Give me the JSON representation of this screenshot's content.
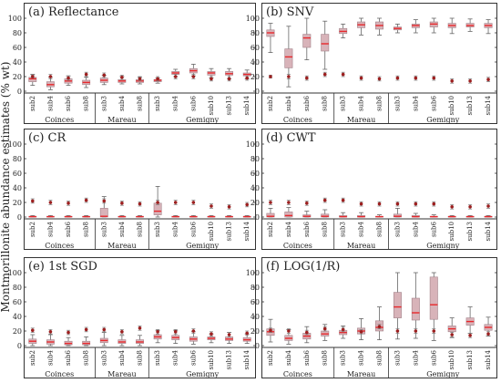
{
  "figure": {
    "ylabel": "Montmorillonite abundance estimates (% wt)"
  },
  "chart_data": [
    {
      "type": "box",
      "title": "(a) Reflectance",
      "ylim": [
        0,
        100
      ],
      "yticks": [
        0,
        20,
        40,
        60,
        80,
        100
      ],
      "categories": [
        "sub2",
        "sub4",
        "sub6",
        "sub8",
        "sub3",
        "sub4",
        "sub8",
        "sub3",
        "sub4",
        "sub6",
        "sub10",
        "sub13",
        "sub14"
      ],
      "groups": [
        {
          "name": "Coinces",
          "count": 4
        },
        {
          "name": "Mareau",
          "count": 3
        },
        {
          "name": "Gemigny",
          "count": 6
        }
      ],
      "boxes": [
        {
          "q1": 13,
          "med": 17,
          "q3": 19,
          "wlo": 8,
          "whi": 23
        },
        {
          "q1": 6,
          "med": 9,
          "q3": 13,
          "wlo": 2,
          "whi": 19
        },
        {
          "q1": 11,
          "med": 14,
          "q3": 17,
          "wlo": 8,
          "whi": 21
        },
        {
          "q1": 9,
          "med": 12,
          "q3": 15,
          "wlo": 5,
          "whi": 19
        },
        {
          "q1": 12,
          "med": 15,
          "q3": 18,
          "wlo": 9,
          "whi": 22
        },
        {
          "q1": 12,
          "med": 14,
          "q3": 16,
          "wlo": 10,
          "whi": 20
        },
        {
          "q1": 12,
          "med": 14,
          "q3": 16,
          "wlo": 10,
          "whi": 19
        },
        {
          "q1": 13,
          "med": 15,
          "q3": 16,
          "wlo": 11,
          "whi": 18
        },
        {
          "q1": 23,
          "med": 25,
          "q3": 27,
          "wlo": 20,
          "whi": 30
        },
        {
          "q1": 25,
          "med": 28,
          "q3": 31,
          "wlo": 21,
          "whi": 37
        },
        {
          "q1": 22,
          "med": 25,
          "q3": 27,
          "wlo": 18,
          "whi": 31
        },
        {
          "q1": 22,
          "med": 24,
          "q3": 27,
          "wlo": 17,
          "whi": 31
        },
        {
          "q1": 21,
          "med": 23,
          "q3": 25,
          "wlo": 17,
          "whi": 29
        }
      ],
      "reference": [
        {
          "mean": 20,
          "err": 2
        },
        {
          "mean": 20,
          "err": 3
        },
        {
          "mean": 18,
          "err": 3
        },
        {
          "mean": 23,
          "err": 3
        },
        {
          "mean": 22,
          "err": 3
        },
        {
          "mean": 19,
          "err": 3
        },
        {
          "mean": 17,
          "err": 3
        },
        {
          "mean": 17,
          "err": 3
        },
        {
          "mean": 20,
          "err": 3
        },
        {
          "mean": 20,
          "err": 3
        },
        {
          "mean": 17,
          "err": 3
        },
        {
          "mean": 17,
          "err": 3
        },
        {
          "mean": 18,
          "err": 3
        }
      ]
    },
    {
      "type": "box",
      "title": "(b) SNV",
      "ylim": [
        0,
        100
      ],
      "yticks": [
        0,
        20,
        40,
        60,
        80,
        100
      ],
      "categories": [
        "sub2",
        "sub4",
        "sub6",
        "sub8",
        "sub3",
        "sub4",
        "sub8",
        "sub3",
        "sub4",
        "sub6",
        "sub10",
        "sub13",
        "sub14"
      ],
      "groups": [
        {
          "name": "Coinces",
          "count": 4
        },
        {
          "name": "Mareau",
          "count": 3
        },
        {
          "name": "Gemigny",
          "count": 6
        }
      ],
      "boxes": [
        {
          "q1": 75,
          "med": 80,
          "q3": 84,
          "wlo": 53,
          "whi": 93
        },
        {
          "q1": 32,
          "med": 47,
          "q3": 58,
          "wlo": 6,
          "whi": 89
        },
        {
          "q1": 60,
          "med": 73,
          "q3": 78,
          "wlo": 43,
          "whi": 100
        },
        {
          "q1": 55,
          "med": 65,
          "q3": 78,
          "wlo": 30,
          "whi": 96
        },
        {
          "q1": 79,
          "med": 82,
          "q3": 86,
          "wlo": 73,
          "whi": 92
        },
        {
          "q1": 87,
          "med": 91,
          "q3": 95,
          "wlo": 77,
          "whi": 100
        },
        {
          "q1": 85,
          "med": 90,
          "q3": 95,
          "wlo": 77,
          "whi": 100
        },
        {
          "q1": 84,
          "med": 86,
          "q3": 88,
          "wlo": 80,
          "whi": 92
        },
        {
          "q1": 87,
          "med": 90,
          "q3": 92,
          "wlo": 80,
          "whi": 98
        },
        {
          "q1": 88,
          "med": 92,
          "q3": 95,
          "wlo": 80,
          "whi": 100
        },
        {
          "q1": 87,
          "med": 90,
          "q3": 93,
          "wlo": 79,
          "whi": 100
        },
        {
          "q1": 88,
          "med": 90,
          "q3": 93,
          "wlo": 82,
          "whi": 99
        },
        {
          "q1": 87,
          "med": 90,
          "q3": 93,
          "wlo": 79,
          "whi": 98
        }
      ],
      "reference": [
        {
          "mean": 20,
          "err": 2
        },
        {
          "mean": 20,
          "err": 3
        },
        {
          "mean": 18,
          "err": 3
        },
        {
          "mean": 23,
          "err": 3
        },
        {
          "mean": 23,
          "err": 3
        },
        {
          "mean": 18,
          "err": 3
        },
        {
          "mean": 17,
          "err": 3
        },
        {
          "mean": 18,
          "err": 3
        },
        {
          "mean": 18,
          "err": 3
        },
        {
          "mean": 18,
          "err": 3
        },
        {
          "mean": 14,
          "err": 3
        },
        {
          "mean": 14,
          "err": 3
        },
        {
          "mean": 16,
          "err": 3
        }
      ]
    },
    {
      "type": "box",
      "title": "(c) CR",
      "ylim": [
        0,
        100
      ],
      "yticks": [
        0,
        20,
        40,
        60,
        80,
        100
      ],
      "categories": [
        "sub2",
        "sub4",
        "sub6",
        "sub8",
        "sub3",
        "sub4",
        "sub8",
        "sub3",
        "sub4",
        "sub6",
        "sub10",
        "sub13",
        "sub14"
      ],
      "groups": [
        {
          "name": "Coinces",
          "count": 4
        },
        {
          "name": "Mareau",
          "count": 3
        },
        {
          "name": "Gemigny",
          "count": 6
        }
      ],
      "boxes": [
        {
          "q1": 0,
          "med": 0.5,
          "q3": 1,
          "wlo": 0,
          "whi": 2
        },
        {
          "q1": 0,
          "med": 0.5,
          "q3": 1,
          "wlo": 0,
          "whi": 2
        },
        {
          "q1": 0,
          "med": 0.5,
          "q3": 1,
          "wlo": 0,
          "whi": 2
        },
        {
          "q1": 0,
          "med": 0.5,
          "q3": 1,
          "wlo": 0,
          "whi": 2
        },
        {
          "q1": 0,
          "med": 1,
          "q3": 12,
          "wlo": 0,
          "whi": 28
        },
        {
          "q1": 0,
          "med": 0.5,
          "q3": 1,
          "wlo": 0,
          "whi": 2
        },
        {
          "q1": 0,
          "med": 0.5,
          "q3": 1,
          "wlo": 0,
          "whi": 2
        },
        {
          "q1": 3,
          "med": 8,
          "q3": 19,
          "wlo": 0,
          "whi": 42
        },
        {
          "q1": 0,
          "med": 0.5,
          "q3": 1,
          "wlo": 0,
          "whi": 2
        },
        {
          "q1": 0,
          "med": 0.5,
          "q3": 1,
          "wlo": 0,
          "whi": 2
        },
        {
          "q1": 0,
          "med": 0.5,
          "q3": 1,
          "wlo": 0,
          "whi": 2
        },
        {
          "q1": 0,
          "med": 0.5,
          "q3": 1,
          "wlo": 0,
          "whi": 2
        },
        {
          "q1": 0,
          "med": 0.5,
          "q3": 1,
          "wlo": 0,
          "whi": 2
        }
      ],
      "reference": [
        {
          "mean": 22,
          "err": 3
        },
        {
          "mean": 20,
          "err": 3
        },
        {
          "mean": 19,
          "err": 3
        },
        {
          "mean": 23,
          "err": 3
        },
        {
          "mean": 22,
          "err": 3
        },
        {
          "mean": 19,
          "err": 3
        },
        {
          "mean": 18,
          "err": 3
        },
        {
          "mean": 20,
          "err": 3
        },
        {
          "mean": 20,
          "err": 3
        },
        {
          "mean": 20,
          "err": 3
        },
        {
          "mean": 15,
          "err": 3
        },
        {
          "mean": 14,
          "err": 3
        },
        {
          "mean": 17,
          "err": 3
        }
      ]
    },
    {
      "type": "box",
      "title": "(d) CWT",
      "ylim": [
        0,
        100
      ],
      "yticks": [
        0,
        20,
        40,
        60,
        80,
        100
      ],
      "categories": [
        "sub2",
        "sub4",
        "sub6",
        "sub8",
        "sub3",
        "sub4",
        "sub8",
        "sub3",
        "sub4",
        "sub6",
        "sub10",
        "sub13",
        "sub14"
      ],
      "groups": [
        {
          "name": "Coinces",
          "count": 4
        },
        {
          "name": "Mareau",
          "count": 3
        },
        {
          "name": "Gemigny",
          "count": 6
        }
      ],
      "boxes": [
        {
          "q1": 0,
          "med": 1,
          "q3": 5,
          "wlo": 0,
          "whi": 12
        },
        {
          "q1": 0,
          "med": 2,
          "q3": 7,
          "wlo": 0,
          "whi": 13
        },
        {
          "q1": 0,
          "med": 1,
          "q3": 3,
          "wlo": 0,
          "whi": 8
        },
        {
          "q1": 0,
          "med": 1,
          "q3": 4,
          "wlo": 0,
          "whi": 10
        },
        {
          "q1": 0,
          "med": 0.5,
          "q3": 2,
          "wlo": 0,
          "whi": 6
        },
        {
          "q1": 0,
          "med": 0.5,
          "q3": 2,
          "wlo": 0,
          "whi": 6
        },
        {
          "q1": 0,
          "med": 0.5,
          "q3": 1,
          "wlo": 0,
          "whi": 3
        },
        {
          "q1": 0,
          "med": 1,
          "q3": 4,
          "wlo": 0,
          "whi": 12
        },
        {
          "q1": 0,
          "med": 0.5,
          "q3": 2,
          "wlo": 0,
          "whi": 5
        },
        {
          "q1": 0,
          "med": 0.5,
          "q3": 1,
          "wlo": 0,
          "whi": 3
        },
        {
          "q1": 0,
          "med": 0.5,
          "q3": 1,
          "wlo": 0,
          "whi": 2
        },
        {
          "q1": 0,
          "med": 0.5,
          "q3": 1,
          "wlo": 0,
          "whi": 2
        },
        {
          "q1": 0,
          "med": 0.5,
          "q3": 1,
          "wlo": 0,
          "whi": 2
        }
      ],
      "reference": [
        {
          "mean": 20,
          "err": 3
        },
        {
          "mean": 20,
          "err": 3
        },
        {
          "mean": 19,
          "err": 3
        },
        {
          "mean": 23,
          "err": 3
        },
        {
          "mean": 23,
          "err": 3
        },
        {
          "mean": 18,
          "err": 3
        },
        {
          "mean": 18,
          "err": 3
        },
        {
          "mean": 18,
          "err": 3
        },
        {
          "mean": 18,
          "err": 3
        },
        {
          "mean": 18,
          "err": 3
        },
        {
          "mean": 14,
          "err": 3
        },
        {
          "mean": 14,
          "err": 3
        },
        {
          "mean": 15,
          "err": 3
        }
      ]
    },
    {
      "type": "box",
      "title": "(e) 1st SGD",
      "ylim": [
        0,
        100
      ],
      "yticks": [
        0,
        20,
        40,
        60,
        80,
        100
      ],
      "categories": [
        "sub2",
        "sub4",
        "sub6",
        "sub8",
        "sub3",
        "sub4",
        "sub8",
        "sub3",
        "sub4",
        "sub6",
        "sub10",
        "sub13",
        "sub14"
      ],
      "groups": [
        {
          "name": "Coinces",
          "count": 4
        },
        {
          "name": "Mareau",
          "count": 3
        },
        {
          "name": "Gemigny",
          "count": 6
        }
      ],
      "boxes": [
        {
          "q1": 3,
          "med": 6,
          "q3": 9,
          "wlo": 0,
          "whi": 15
        },
        {
          "q1": 2,
          "med": 5,
          "q3": 8,
          "wlo": 0,
          "whi": 15
        },
        {
          "q1": 1,
          "med": 3,
          "q3": 6,
          "wlo": 0,
          "whi": 11
        },
        {
          "q1": 1,
          "med": 3,
          "q3": 6,
          "wlo": 0,
          "whi": 12
        },
        {
          "q1": 4,
          "med": 7,
          "q3": 10,
          "wlo": 0,
          "whi": 18
        },
        {
          "q1": 3,
          "med": 5,
          "q3": 8,
          "wlo": 0,
          "whi": 14
        },
        {
          "q1": 3,
          "med": 5,
          "q3": 8,
          "wlo": 0,
          "whi": 14
        },
        {
          "q1": 9,
          "med": 12,
          "q3": 15,
          "wlo": 4,
          "whi": 21
        },
        {
          "q1": 8,
          "med": 11,
          "q3": 14,
          "wlo": 3,
          "whi": 21
        },
        {
          "q1": 6,
          "med": 9,
          "q3": 12,
          "wlo": 2,
          "whi": 19
        },
        {
          "q1": 8,
          "med": 10,
          "q3": 12,
          "wlo": 4,
          "whi": 16
        },
        {
          "q1": 7,
          "med": 9,
          "q3": 12,
          "wlo": 3,
          "whi": 18
        },
        {
          "q1": 6,
          "med": 8,
          "q3": 11,
          "wlo": 3,
          "whi": 16
        }
      ],
      "reference": [
        {
          "mean": 21,
          "err": 3
        },
        {
          "mean": 19,
          "err": 3
        },
        {
          "mean": 18,
          "err": 3
        },
        {
          "mean": 22,
          "err": 3
        },
        {
          "mean": 22,
          "err": 3
        },
        {
          "mean": 19,
          "err": 3
        },
        {
          "mean": 24,
          "err": 3
        },
        {
          "mean": 19,
          "err": 3
        },
        {
          "mean": 19,
          "err": 3
        },
        {
          "mean": 20,
          "err": 3
        },
        {
          "mean": 16,
          "err": 3
        },
        {
          "mean": 15,
          "err": 3
        },
        {
          "mean": 17,
          "err": 3
        }
      ]
    },
    {
      "type": "box",
      "title": "(f) LOG(1/R)",
      "ylim": [
        0,
        100
      ],
      "yticks": [
        0,
        20,
        40,
        60,
        80,
        100
      ],
      "categories": [
        "sub2",
        "sub4",
        "sub6",
        "sub8",
        "sub3",
        "sub4",
        "sub8",
        "sub3",
        "sub4",
        "sub6",
        "sub10",
        "sub13",
        "sub14"
      ],
      "groups": [
        {
          "name": "Coinces",
          "count": 4
        },
        {
          "name": "Mareau",
          "count": 3
        },
        {
          "name": "Gemigny",
          "count": 6
        }
      ],
      "boxes": [
        {
          "q1": 14,
          "med": 19,
          "q3": 23,
          "wlo": 5,
          "whi": 36
        },
        {
          "q1": 7,
          "med": 10,
          "q3": 14,
          "wlo": 2,
          "whi": 22
        },
        {
          "q1": 9,
          "med": 13,
          "q3": 17,
          "wlo": 4,
          "whi": 26
        },
        {
          "q1": 13,
          "med": 16,
          "q3": 20,
          "wlo": 7,
          "whi": 29
        },
        {
          "q1": 15,
          "med": 18,
          "q3": 21,
          "wlo": 10,
          "whi": 27
        },
        {
          "q1": 16,
          "med": 20,
          "q3": 24,
          "wlo": 8,
          "whi": 37
        },
        {
          "q1": 20,
          "med": 25,
          "q3": 34,
          "wlo": 8,
          "whi": 53
        },
        {
          "q1": 38,
          "med": 53,
          "q3": 73,
          "wlo": 9,
          "whi": 100
        },
        {
          "q1": 35,
          "med": 45,
          "q3": 65,
          "wlo": 10,
          "whi": 100
        },
        {
          "q1": 36,
          "med": 56,
          "q3": 94,
          "wlo": 7,
          "whi": 100
        },
        {
          "q1": 19,
          "med": 23,
          "q3": 27,
          "wlo": 11,
          "whi": 38
        },
        {
          "q1": 28,
          "med": 33,
          "q3": 38,
          "wlo": 17,
          "whi": 53
        },
        {
          "q1": 21,
          "med": 25,
          "q3": 29,
          "wlo": 13,
          "whi": 39
        }
      ],
      "reference": [
        {
          "mean": 21,
          "err": 3
        },
        {
          "mean": 20,
          "err": 3
        },
        {
          "mean": 18,
          "err": 3
        },
        {
          "mean": 23,
          "err": 3
        },
        {
          "mean": 22,
          "err": 3
        },
        {
          "mean": 19,
          "err": 3
        },
        {
          "mean": 26,
          "err": 3
        },
        {
          "mean": 20,
          "err": 3
        },
        {
          "mean": 20,
          "err": 3
        },
        {
          "mean": 20,
          "err": 3
        },
        {
          "mean": 15,
          "err": 3
        },
        {
          "mean": 14,
          "err": 3
        },
        {
          "mean": 16,
          "err": 3
        }
      ]
    }
  ],
  "colors": {
    "box_fill": "#d8b3b9",
    "box_stroke": "#a28088",
    "median": "#e8282c",
    "whisker": "#666666",
    "reference_dot": "#9c1f1f",
    "reference_err": "#777777",
    "axis": "#333333"
  }
}
